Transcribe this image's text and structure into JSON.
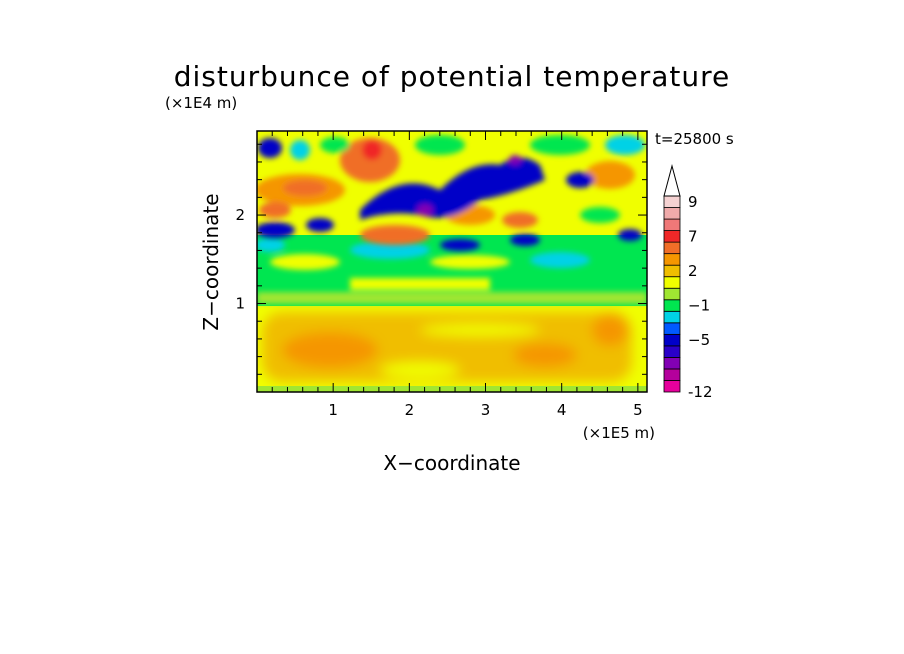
{
  "chart_data": {
    "type": "heatmap",
    "title": "disturbunce of potential temperature",
    "xlabel": "X−coordinate",
    "ylabel": "Z−coordinate",
    "x_unit": "(×1E5 m)",
    "y_unit": "(×1E4 m)",
    "time_label": "t=25800 s",
    "xlim": [
      0,
      5.12
    ],
    "ylim": [
      0,
      2.95
    ],
    "xticks": [
      {
        "value": 1,
        "label": "1"
      },
      {
        "value": 2,
        "label": "2"
      },
      {
        "value": 3,
        "label": "3"
      },
      {
        "value": 4,
        "label": "4"
      },
      {
        "value": 5,
        "label": "5"
      }
    ],
    "yticks": [
      {
        "value": 1,
        "label": "1"
      },
      {
        "value": 2,
        "label": "2"
      }
    ],
    "colorbar": {
      "levels": [
        {
          "label": "-12",
          "color": "#e6009c"
        },
        {
          "label": "",
          "color": "#b4009c"
        },
        {
          "label": "",
          "color": "#8200b4"
        },
        {
          "label": "",
          "color": "#2a00c8"
        },
        {
          "label": "−5",
          "color": "#0000c8"
        },
        {
          "label": "",
          "color": "#005aff"
        },
        {
          "label": "",
          "color": "#00d2e6"
        },
        {
          "label": "−1",
          "color": "#00e650"
        },
        {
          "label": "",
          "color": "#a0e632"
        },
        {
          "label": "",
          "color": "#f0ff00"
        },
        {
          "label": "2",
          "color": "#f0be00"
        },
        {
          "label": "",
          "color": "#f59600"
        },
        {
          "label": "",
          "color": "#f06e28"
        },
        {
          "label": "7",
          "color": "#f02828"
        },
        {
          "label": "",
          "color": "#f07878"
        },
        {
          "label": "",
          "color": "#f0aaaa"
        },
        {
          "label": "9",
          "color": "#f5d2d2"
        }
      ],
      "extend": "max"
    },
    "field_regions": [
      {
        "band": "lower",
        "description_values": "mostly 0 to 3",
        "colors": [
          "#f0ff00",
          "#f0be00",
          "#f59600"
        ]
      },
      {
        "band": "middle",
        "description_values": "mostly -2 to 0",
        "colors": [
          "#00e650",
          "#00d2e6",
          "#a0e632"
        ]
      },
      {
        "band": "upper",
        "description_values": "-7 to 8",
        "colors": [
          "#0000c8",
          "#2a00c8",
          "#f06e28",
          "#f02828"
        ]
      }
    ]
  }
}
